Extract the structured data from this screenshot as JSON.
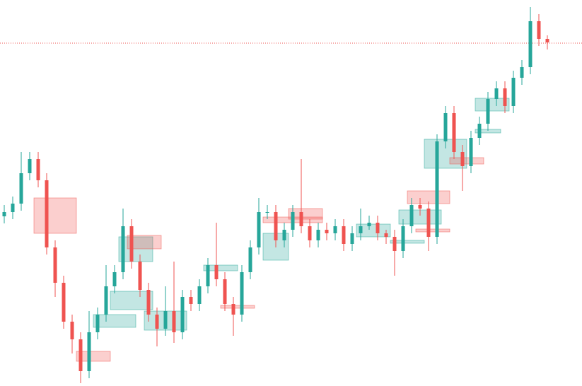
{
  "chart_data": {
    "type": "candlestick",
    "up_color": "#26a69a",
    "down_color": "#ef5350",
    "open": [
      240,
      246,
      258,
      301,
      321,
      291,
      196,
      146,
      91,
      66,
      21,
      76,
      101,
      141,
      161,
      226,
      176,
      136,
      101,
      81,
      106,
      76,
      126,
      116,
      141,
      171,
      151,
      116,
      101,
      161,
      196,
      246,
      246,
      206,
      221,
      246,
      226,
      206,
      221,
      216,
      226,
      201,
      216,
      226,
      231,
      216,
      211,
      191,
      226,
      256,
      251,
      211,
      346,
      386,
      331,
      311,
      351,
      371,
      406,
      421,
      396,
      436,
      451,
      516,
      491
    ],
    "high": [
      256,
      268,
      331,
      331,
      331,
      301,
      206,
      156,
      101,
      76,
      106,
      111,
      171,
      171,
      251,
      236,
      186,
      146,
      111,
      141,
      176,
      136,
      136,
      151,
      181,
      231,
      161,
      126,
      171,
      206,
      266,
      256,
      256,
      231,
      256,
      321,
      236,
      231,
      231,
      236,
      236,
      226,
      251,
      241,
      241,
      221,
      221,
      236,
      266,
      266,
      261,
      356,
      396,
      396,
      341,
      361,
      381,
      416,
      431,
      431,
      446,
      461,
      536,
      526,
      496
    ],
    "low": [
      230,
      236,
      248,
      291,
      281,
      186,
      126,
      81,
      46,
      4,
      11,
      66,
      91,
      131,
      151,
      166,
      126,
      91,
      56,
      71,
      61,
      66,
      106,
      106,
      131,
      141,
      106,
      71,
      91,
      151,
      186,
      236,
      196,
      196,
      211,
      216,
      196,
      196,
      206,
      206,
      191,
      191,
      206,
      221,
      206,
      201,
      156,
      181,
      216,
      241,
      191,
      201,
      336,
      321,
      276,
      301,
      341,
      361,
      396,
      386,
      386,
      426,
      441,
      481,
      476
    ],
    "close": [
      246,
      258,
      301,
      321,
      291,
      196,
      146,
      91,
      66,
      21,
      76,
      101,
      141,
      161,
      226,
      176,
      136,
      101,
      81,
      106,
      76,
      126,
      116,
      141,
      171,
      151,
      116,
      101,
      161,
      196,
      246,
      246,
      206,
      221,
      246,
      226,
      206,
      221,
      216,
      226,
      201,
      216,
      226,
      231,
      216,
      211,
      191,
      226,
      256,
      251,
      211,
      346,
      386,
      331,
      311,
      351,
      371,
      406,
      421,
      396,
      436,
      451,
      516,
      491,
      486
    ],
    "price_line": 485,
    "price_line_color": "#ef5350",
    "zones": [
      {
        "from": 4,
        "to": 8,
        "low": 216,
        "high": 266,
        "color": "#ef5350"
      },
      {
        "from": 14,
        "to": 17,
        "low": 176,
        "high": 211,
        "color": "#26a69a"
      },
      {
        "from": 15,
        "to": 18,
        "low": 194,
        "high": 213,
        "color": "#ef5350"
      },
      {
        "from": 13,
        "to": 17,
        "low": 108,
        "high": 134,
        "color": "#26a69a"
      },
      {
        "from": 11,
        "to": 15,
        "low": 83,
        "high": 101,
        "color": "#26a69a"
      },
      {
        "from": 9,
        "to": 12,
        "low": 35,
        "high": 49,
        "color": "#ef5350"
      },
      {
        "from": 17,
        "to": 21,
        "low": 79,
        "high": 106,
        "color": "#26a69a"
      },
      {
        "from": 24,
        "to": 27,
        "low": 163,
        "high": 171,
        "color": "#26a69a"
      },
      {
        "from": 26,
        "to": 29,
        "low": 110,
        "high": 114,
        "color": "#ef5350"
      },
      {
        "from": 31,
        "to": 33,
        "low": 178,
        "high": 216,
        "color": "#26a69a"
      },
      {
        "from": 31,
        "to": 37,
        "low": 231,
        "high": 239,
        "color": "#ef5350"
      },
      {
        "from": 34,
        "to": 37,
        "low": 236,
        "high": 251,
        "color": "#ef5350"
      },
      {
        "from": 42,
        "to": 45,
        "low": 211,
        "high": 229,
        "color": "#26a69a"
      },
      {
        "from": 46,
        "to": 49,
        "low": 202,
        "high": 206,
        "color": "#26a69a"
      },
      {
        "from": 47,
        "to": 51,
        "low": 229,
        "high": 249,
        "color": "#26a69a"
      },
      {
        "from": 48,
        "to": 52,
        "low": 258,
        "high": 276,
        "color": "#ef5350"
      },
      {
        "from": 49,
        "to": 52,
        "low": 218,
        "high": 222,
        "color": "#ef5350"
      },
      {
        "from": 50,
        "to": 54,
        "low": 308,
        "high": 349,
        "color": "#26a69a"
      },
      {
        "from": 53,
        "to": 56,
        "low": 314,
        "high": 323,
        "color": "#ef5350"
      },
      {
        "from": 56,
        "to": 59,
        "low": 389,
        "high": 407,
        "color": "#26a69a"
      },
      {
        "from": 56,
        "to": 58,
        "low": 358,
        "high": 363,
        "color": "#26a69a"
      }
    ]
  }
}
